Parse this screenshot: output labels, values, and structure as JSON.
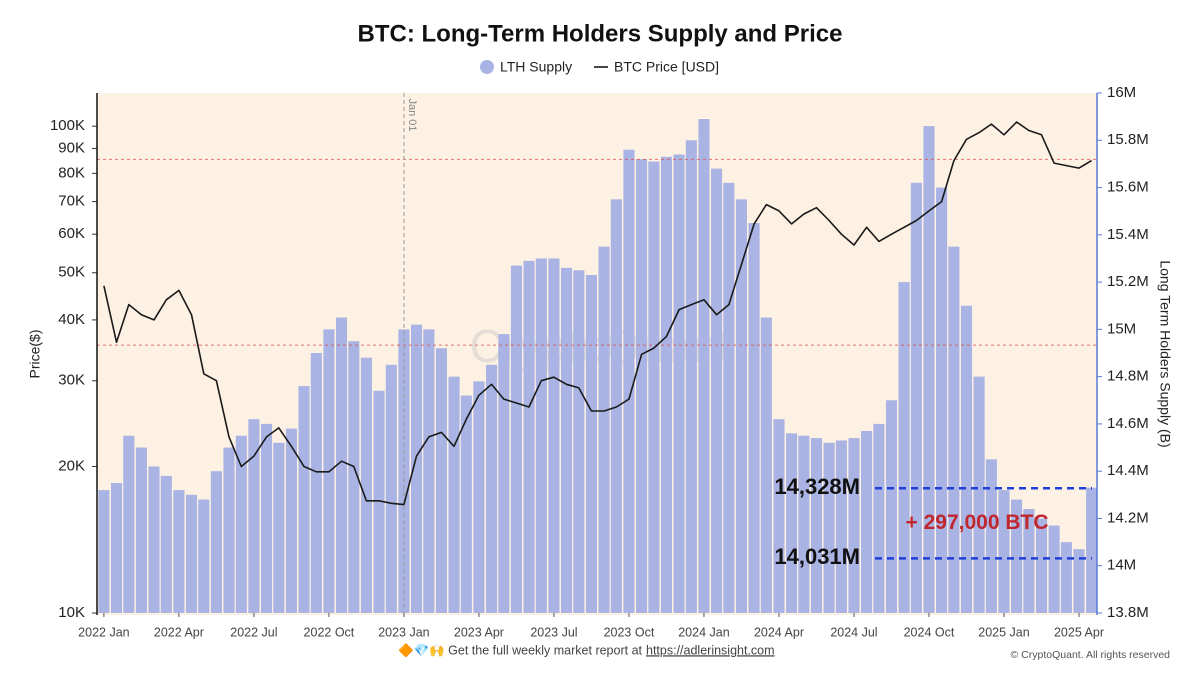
{
  "chart_data": {
    "type": "bar_line",
    "title": "BTC: Long-Term Holders Supply and Price",
    "ylabel": "Price($)",
    "y2label": "Long Term Holders Supply (B)",
    "yscale": "log",
    "ylim": [
      10000,
      117000
    ],
    "yticks": [
      {
        "value": 10000,
        "label": "10K"
      },
      {
        "value": 20000,
        "label": "20K"
      },
      {
        "value": 30000,
        "label": "30K"
      },
      {
        "value": 40000,
        "label": "40K"
      },
      {
        "value": 50000,
        "label": "50K"
      },
      {
        "value": 60000,
        "label": "60K"
      },
      {
        "value": 70000,
        "label": "70K"
      },
      {
        "value": 80000,
        "label": "80K"
      },
      {
        "value": 90000,
        "label": "90K"
      },
      {
        "value": 100000,
        "label": "100K"
      }
    ],
    "y2lim": [
      13.8,
      16.0
    ],
    "y2ticks": [
      {
        "value": 13.8,
        "label": "13.8M"
      },
      {
        "value": 14,
        "label": "14M"
      },
      {
        "value": 14.2,
        "label": "14.2M"
      },
      {
        "value": 14.4,
        "label": "14.4M"
      },
      {
        "value": 14.6,
        "label": "14.6M"
      },
      {
        "value": 14.8,
        "label": "14.8M"
      },
      {
        "value": 15,
        "label": "15M"
      },
      {
        "value": 15.2,
        "label": "15.2M"
      },
      {
        "value": 15.4,
        "label": "15.4M"
      },
      {
        "value": 15.6,
        "label": "15.6M"
      },
      {
        "value": 15.8,
        "label": "15.8M"
      },
      {
        "value": 16,
        "label": "16M"
      }
    ],
    "xlim": [
      2021.977,
      2025.31
    ],
    "xticks": [
      {
        "value": 2022,
        "label": "2022 Jan"
      },
      {
        "value": 2022.25,
        "label": "2022 Apr"
      },
      {
        "value": 2022.5,
        "label": "2022 Jul"
      },
      {
        "value": 2022.75,
        "label": "2022 Oct"
      },
      {
        "value": 2023,
        "label": "2023 Jan"
      },
      {
        "value": 2023.25,
        "label": "2023 Apr"
      },
      {
        "value": 2023.5,
        "label": "2023 Jul"
      },
      {
        "value": 2023.75,
        "label": "2023 Oct"
      },
      {
        "value": 2024,
        "label": "2024 Jan"
      },
      {
        "value": 2024.25,
        "label": "2024 Apr"
      },
      {
        "value": 2024.5,
        "label": "2024 Jul"
      },
      {
        "value": 2024.75,
        "label": "2024 Oct"
      },
      {
        "value": 2025,
        "label": "2025 Jan"
      },
      {
        "value": 2025.25,
        "label": "2025 Apr"
      }
    ],
    "x": [
      2022,
      2022.042,
      2022.083,
      2022.125,
      2022.167,
      2022.208,
      2022.25,
      2022.292,
      2022.333,
      2022.375,
      2022.417,
      2022.458,
      2022.5,
      2022.542,
      2022.583,
      2022.625,
      2022.667,
      2022.708,
      2022.75,
      2022.792,
      2022.833,
      2022.875,
      2022.917,
      2022.958,
      2023,
      2023.042,
      2023.083,
      2023.125,
      2023.167,
      2023.208,
      2023.25,
      2023.292,
      2023.333,
      2023.375,
      2023.417,
      2023.458,
      2023.5,
      2023.542,
      2023.583,
      2023.625,
      2023.667,
      2023.708,
      2023.75,
      2023.792,
      2023.833,
      2023.875,
      2023.917,
      2023.958,
      2024,
      2024.042,
      2024.083,
      2024.125,
      2024.167,
      2024.208,
      2024.25,
      2024.292,
      2024.333,
      2024.375,
      2024.417,
      2024.458,
      2024.5,
      2024.542,
      2024.583,
      2024.625,
      2024.667,
      2024.708,
      2024.75,
      2024.792,
      2024.833,
      2024.875,
      2024.917,
      2024.958,
      2025,
      2025.042,
      2025.083,
      2025.125,
      2025.167,
      2025.208,
      2025.25,
      2025.292
    ],
    "series": [
      {
        "name": "LTH Supply",
        "type": "bar",
        "axis": "y2",
        "color": "#a9b4e4",
        "values": [
          14.32,
          14.35,
          14.55,
          14.5,
          14.42,
          14.38,
          14.32,
          14.3,
          14.28,
          14.4,
          14.5,
          14.55,
          14.62,
          14.6,
          14.52,
          14.58,
          14.76,
          14.9,
          15.0,
          15.05,
          14.95,
          14.88,
          14.74,
          14.85,
          15.0,
          15.02,
          15.0,
          14.92,
          14.8,
          14.72,
          14.78,
          14.85,
          14.98,
          15.27,
          15.29,
          15.3,
          15.3,
          15.26,
          15.25,
          15.23,
          15.35,
          15.55,
          15.76,
          15.72,
          15.71,
          15.73,
          15.74,
          15.8,
          15.89,
          15.68,
          15.62,
          15.55,
          15.45,
          15.05,
          14.62,
          14.56,
          14.55,
          14.54,
          14.52,
          14.53,
          14.54,
          14.57,
          14.6,
          14.7,
          15.2,
          15.62,
          15.86,
          15.6,
          15.35,
          15.1,
          14.8,
          14.45,
          14.32,
          14.28,
          14.24,
          14.2,
          14.17,
          14.1,
          14.07,
          14.33
        ]
      },
      {
        "name": "BTC Price [USD]",
        "type": "line",
        "color": "#1a1a1a",
        "values": [
          47000,
          36000,
          43000,
          41000,
          40000,
          44000,
          46000,
          41000,
          31000,
          30000,
          23000,
          20000,
          21000,
          23000,
          24000,
          22000,
          20000,
          19500,
          19500,
          20500,
          20000,
          17000,
          17000,
          16800,
          16700,
          21000,
          23000,
          23500,
          22000,
          25000,
          28000,
          29500,
          27500,
          27000,
          26500,
          30000,
          30500,
          29500,
          29000,
          26000,
          26000,
          26500,
          27500,
          34000,
          35000,
          37000,
          42000,
          43000,
          44000,
          41000,
          43000,
          52000,
          63000,
          69000,
          67000,
          63000,
          66000,
          68000,
          64000,
          60000,
          57000,
          62000,
          58000,
          60000,
          62000,
          64000,
          67000,
          70000,
          85000,
          94000,
          97000,
          101000,
          96000,
          102000,
          98000,
          96000,
          84000,
          83000,
          82000,
          85000
        ]
      }
    ],
    "reference_lines_y": [
      85500,
      35500
    ],
    "vline": {
      "x": 2023,
      "label": "Jan 01"
    },
    "annotations": [
      {
        "text": "14,328M",
        "value": 14.328
      },
      {
        "text": "14,031M",
        "value": 14.031
      }
    ],
    "difference_label": "+ 297,000 BTC",
    "watermark": "CryptoQuant",
    "footer": "🔶💎🙌 Get the full weekly market report at",
    "footer_link": "https://adlerinsight.com",
    "copyright": "© CryptoQuant. All rights reserved"
  }
}
